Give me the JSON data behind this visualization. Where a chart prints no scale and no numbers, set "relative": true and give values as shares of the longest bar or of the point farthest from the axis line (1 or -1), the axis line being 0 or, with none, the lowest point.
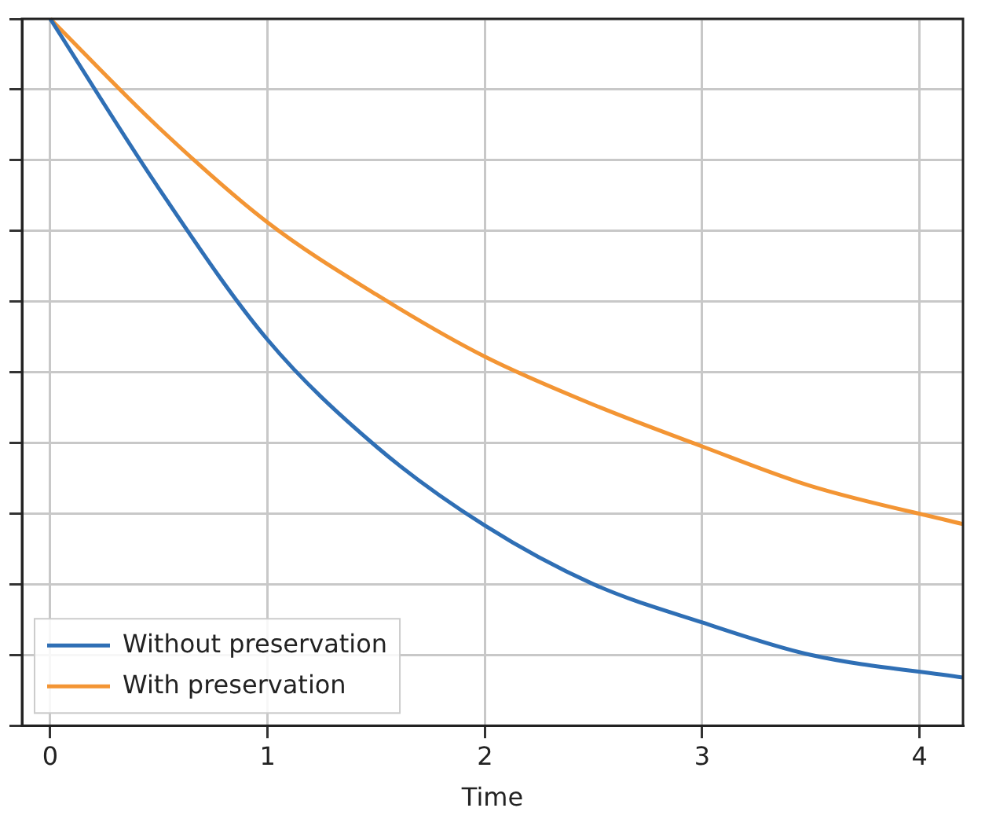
{
  "chart_data": {
    "type": "line",
    "xlabel": "Time",
    "relative": true,
    "xlim": [
      -0.13,
      4.2
    ],
    "xticks": [
      0,
      1,
      2,
      3,
      4
    ],
    "grid": true,
    "legend": "bottom left",
    "marker": "none",
    "line_style": "solid",
    "x": [
      0,
      0.5,
      1,
      1.5,
      2,
      2.5,
      3,
      3.5,
      4.2
    ],
    "series": [
      {
        "name": "Without preservation",
        "color": "#2f6fb5",
        "values": [
          1,
          0.76,
          0.546,
          0.395,
          0.283,
          0.2,
          0.146,
          0.1,
          0.068
        ]
      },
      {
        "name": "With preservation",
        "color": "#f39534",
        "values": [
          1,
          0.846,
          0.712,
          0.61,
          0.522,
          0.454,
          0.395,
          0.339,
          0.285
        ]
      }
    ]
  }
}
